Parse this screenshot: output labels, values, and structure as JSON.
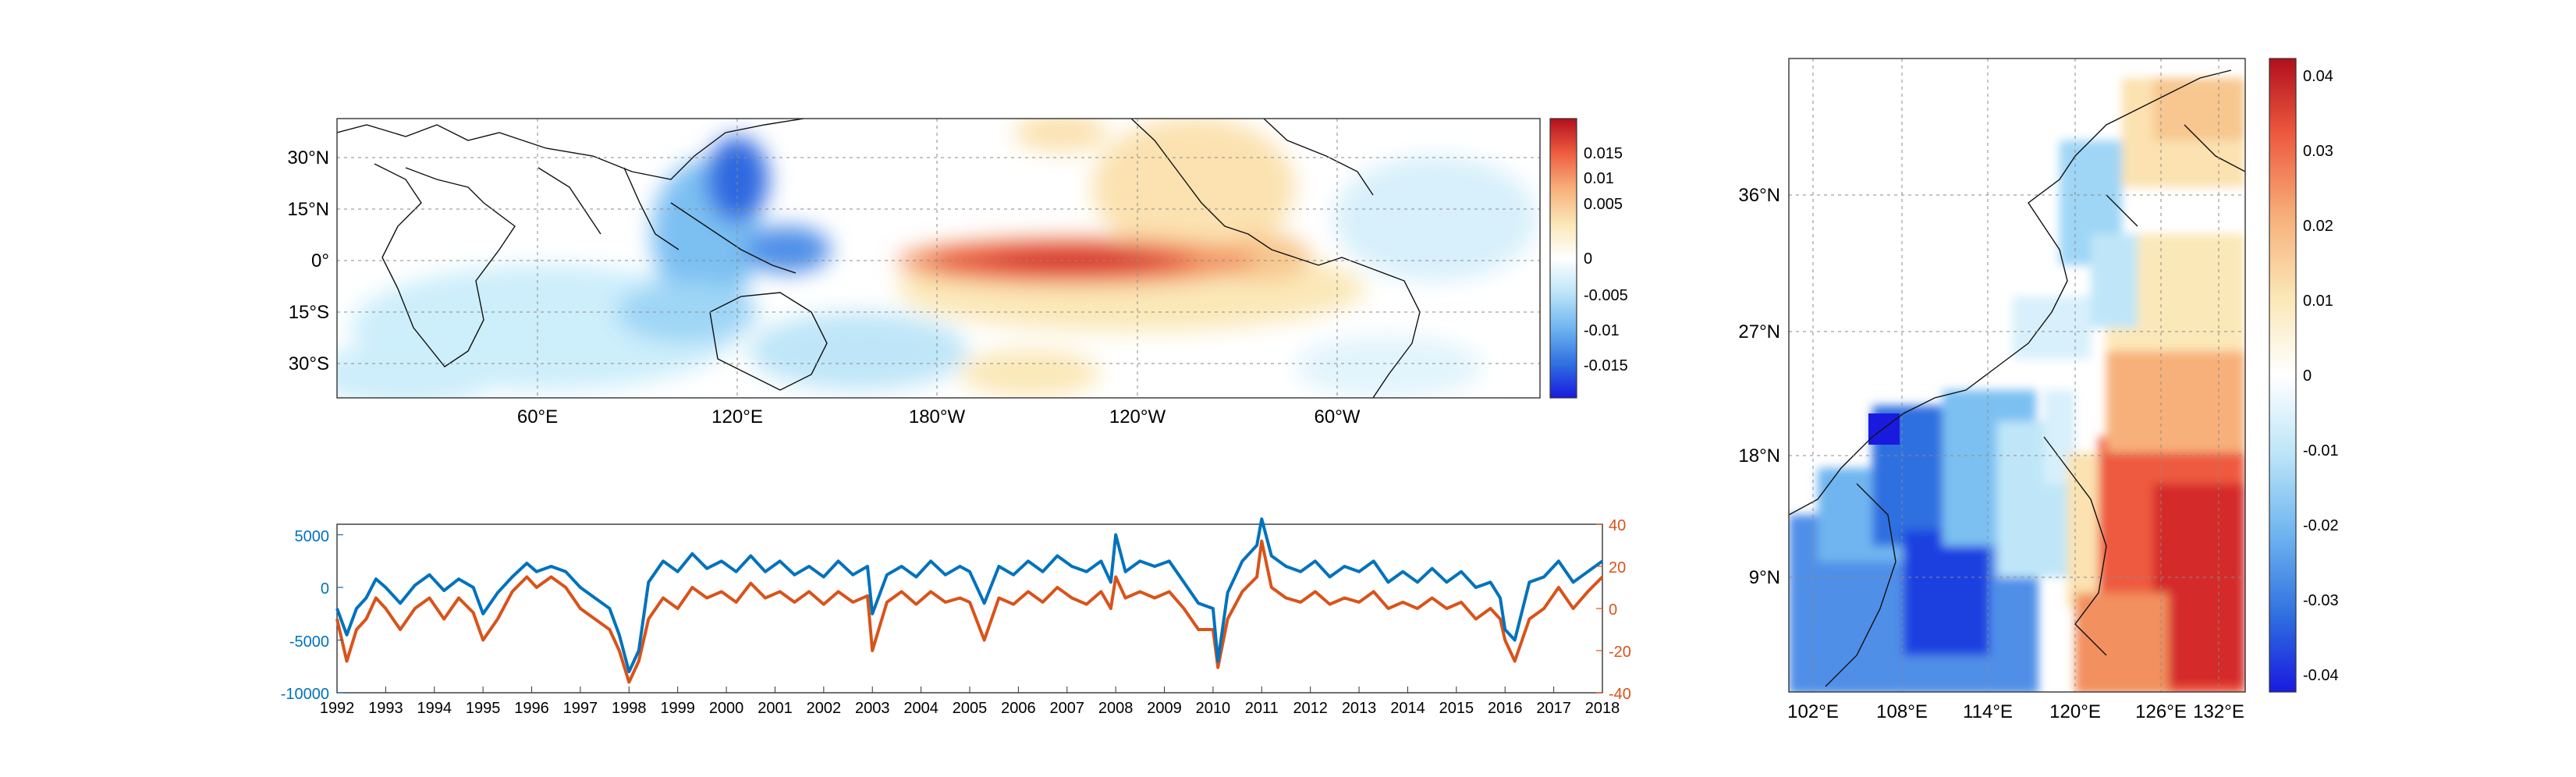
{
  "chart_data": [
    {
      "type": "heatmap",
      "panel": "global-map",
      "y_ticks": [
        "30°N",
        "15°N",
        "0°",
        "15°S",
        "30°S"
      ],
      "x_ticks": [
        "60°E",
        "120°E",
        "180°W",
        "120°W",
        "60°W"
      ],
      "colorbar": {
        "ticks": [
          "0.015",
          "0.01",
          "0.005",
          "0",
          "-0.005",
          "-0.01",
          "-0.015"
        ],
        "range": [
          -0.019,
          0.019
        ],
        "palette": "blue-white-red"
      },
      "features": [
        {
          "name": "equatorial Pacific positive tongue",
          "lon": [
            160,
            255
          ],
          "lat": [
            -5,
            5
          ],
          "peak": 0.018
        },
        {
          "name": "western Pacific negative",
          "lon": [
            110,
            150
          ],
          "lat": [
            -10,
            25
          ],
          "peak": -0.018
        },
        {
          "name": "Indian Ocean weak negative",
          "lon": [
            40,
            100
          ],
          "lat": [
            -30,
            10
          ],
          "peak": -0.006
        },
        {
          "name": "NE Pacific positive",
          "lon": [
            200,
            250
          ],
          "lat": [
            10,
            40
          ],
          "peak": 0.006
        }
      ],
      "grid": true
    },
    {
      "type": "line",
      "panel": "time-series",
      "x_ticks": [
        "1992",
        "1993",
        "1994",
        "1995",
        "1996",
        "1997",
        "1998",
        "1999",
        "2000",
        "2001",
        "2002",
        "2003",
        "2004",
        "2005",
        "2006",
        "2007",
        "2008",
        "2009",
        "2010",
        "2011",
        "2012",
        "2013",
        "2014",
        "2015",
        "2016",
        "2017",
        "2018"
      ],
      "xlim": [
        1992,
        2018
      ],
      "left_axis": {
        "ticks": [
          "5000",
          "0",
          "-5000",
          "-10000"
        ],
        "ylim": [
          -10000,
          6000
        ],
        "color": "#0072BD"
      },
      "right_axis": {
        "ticks": [
          "40",
          "20",
          "0",
          "-20",
          "-40"
        ],
        "ylim": [
          -40,
          40
        ],
        "color": "#D95319"
      },
      "series": [
        {
          "axis": "left",
          "color": "#0072BD",
          "x": [
            1992.0,
            1992.2,
            1992.4,
            1992.6,
            1992.8,
            1993.0,
            1993.3,
            1993.6,
            1993.9,
            1994.2,
            1994.5,
            1994.8,
            1995.0,
            1995.3,
            1995.6,
            1995.9,
            1996.1,
            1996.4,
            1996.7,
            1997.0,
            1997.3,
            1997.6,
            1997.8,
            1998.0,
            1998.2,
            1998.4,
            1998.7,
            1999.0,
            1999.3,
            1999.6,
            1999.9,
            2000.2,
            2000.5,
            2000.8,
            2001.1,
            2001.4,
            2001.7,
            2002.0,
            2002.3,
            2002.6,
            2002.9,
            2003.0,
            2003.3,
            2003.6,
            2003.9,
            2004.2,
            2004.5,
            2004.8,
            2005.0,
            2005.3,
            2005.6,
            2005.9,
            2006.2,
            2006.5,
            2006.8,
            2007.1,
            2007.4,
            2007.7,
            2007.9,
            2008.0,
            2008.2,
            2008.5,
            2008.8,
            2009.1,
            2009.4,
            2009.7,
            2010.0,
            2010.1,
            2010.3,
            2010.6,
            2010.9,
            2011.0,
            2011.2,
            2011.5,
            2011.8,
            2012.1,
            2012.4,
            2012.7,
            2013.0,
            2013.3,
            2013.6,
            2013.9,
            2014.2,
            2014.5,
            2014.8,
            2015.1,
            2015.4,
            2015.7,
            2015.9,
            2016.0,
            2016.2,
            2016.5,
            2016.8,
            2017.1,
            2017.4,
            2017.7,
            2018.0
          ],
          "y": [
            -2000,
            -4500,
            -2000,
            -1000,
            800,
            0,
            -1500,
            200,
            1200,
            -300,
            800,
            0,
            -2500,
            -500,
            1000,
            2300,
            1500,
            2000,
            1500,
            0,
            -1000,
            -2000,
            -4500,
            -8000,
            -6000,
            500,
            2500,
            1500,
            3200,
            1800,
            2500,
            1500,
            3000,
            1500,
            2500,
            1200,
            2000,
            1000,
            2500,
            1200,
            2000,
            -2500,
            1200,
            2000,
            1000,
            2500,
            1200,
            2000,
            1500,
            -1500,
            2000,
            1200,
            2500,
            1500,
            3000,
            2000,
            1500,
            2500,
            500,
            5000,
            1500,
            2500,
            2000,
            2500,
            500,
            -1500,
            -2000,
            -7000,
            -500,
            2500,
            4000,
            6500,
            3000,
            2000,
            1500,
            2500,
            1000,
            2000,
            1500,
            2500,
            500,
            1500,
            500,
            1800,
            500,
            1500,
            0,
            500,
            -1000,
            -4000,
            -5000,
            500,
            1000,
            2500,
            500,
            1500,
            2500
          ]
        },
        {
          "axis": "right",
          "color": "#D95319",
          "x": [
            1992.0,
            1992.2,
            1992.4,
            1992.6,
            1992.8,
            1993.0,
            1993.3,
            1993.6,
            1993.9,
            1994.2,
            1994.5,
            1994.8,
            1995.0,
            1995.3,
            1995.6,
            1995.9,
            1996.1,
            1996.4,
            1996.7,
            1997.0,
            1997.3,
            1997.6,
            1997.8,
            1998.0,
            1998.2,
            1998.4,
            1998.7,
            1999.0,
            1999.3,
            1999.6,
            1999.9,
            2000.2,
            2000.5,
            2000.8,
            2001.1,
            2001.4,
            2001.7,
            2002.0,
            2002.3,
            2002.6,
            2002.9,
            2003.0,
            2003.3,
            2003.6,
            2003.9,
            2004.2,
            2004.5,
            2004.8,
            2005.0,
            2005.3,
            2005.6,
            2005.9,
            2006.2,
            2006.5,
            2006.8,
            2007.1,
            2007.4,
            2007.7,
            2007.9,
            2008.0,
            2008.2,
            2008.5,
            2008.8,
            2009.1,
            2009.4,
            2009.7,
            2010.0,
            2010.1,
            2010.3,
            2010.6,
            2010.9,
            2011.0,
            2011.2,
            2011.5,
            2011.8,
            2012.1,
            2012.4,
            2012.7,
            2013.0,
            2013.3,
            2013.6,
            2013.9,
            2014.2,
            2014.5,
            2014.8,
            2015.1,
            2015.4,
            2015.7,
            2015.9,
            2016.0,
            2016.2,
            2016.5,
            2016.8,
            2017.1,
            2017.4,
            2017.7,
            2018.0
          ],
          "y": [
            -5,
            -25,
            -10,
            -5,
            5,
            0,
            -10,
            0,
            5,
            -5,
            5,
            -2,
            -15,
            -5,
            8,
            15,
            10,
            15,
            10,
            0,
            -5,
            -10,
            -20,
            -35,
            -25,
            -5,
            5,
            0,
            10,
            5,
            8,
            3,
            12,
            5,
            8,
            3,
            8,
            2,
            8,
            3,
            6,
            -20,
            3,
            8,
            2,
            8,
            3,
            5,
            3,
            -15,
            5,
            2,
            8,
            3,
            10,
            5,
            2,
            8,
            0,
            15,
            5,
            8,
            5,
            8,
            0,
            -10,
            -10,
            -28,
            -5,
            8,
            15,
            32,
            10,
            5,
            3,
            8,
            2,
            5,
            3,
            8,
            0,
            3,
            0,
            5,
            0,
            3,
            -5,
            0,
            -5,
            -15,
            -25,
            -5,
            0,
            10,
            0,
            8,
            15
          ]
        }
      ],
      "grid": false
    },
    {
      "type": "heatmap",
      "panel": "regional-map",
      "y_ticks": [
        "36°N",
        "27°N",
        "18°N",
        "9°N"
      ],
      "x_ticks": [
        "102°E",
        "108°E",
        "114°E",
        "120°E",
        "126°E",
        "132°E"
      ],
      "colorbar": {
        "ticks": [
          "0.04",
          "0.03",
          "0.02",
          "0.01",
          "0",
          "-0.01",
          "-0.02",
          "-0.03",
          "-0.04"
        ],
        "range": [
          -0.045,
          0.043
        ],
        "palette": "blue-white-red"
      },
      "features": [
        {
          "name": "South China Sea negative",
          "lon": [
            102,
            120
          ],
          "lat": [
            0,
            24
          ],
          "peak": -0.04
        },
        {
          "name": "Philippine Sea positive",
          "lon": [
            122,
            135
          ],
          "lat": [
            0,
            22
          ],
          "peak": 0.04
        },
        {
          "name": "Yellow/East China Sea weak negative",
          "lon": [
            118,
            128
          ],
          "lat": [
            26,
            40
          ],
          "peak": -0.015
        },
        {
          "name": "Japan Sea weak positive",
          "lon": [
            128,
            135
          ],
          "lat": [
            36,
            44
          ],
          "peak": 0.01
        }
      ],
      "grid": true
    }
  ]
}
